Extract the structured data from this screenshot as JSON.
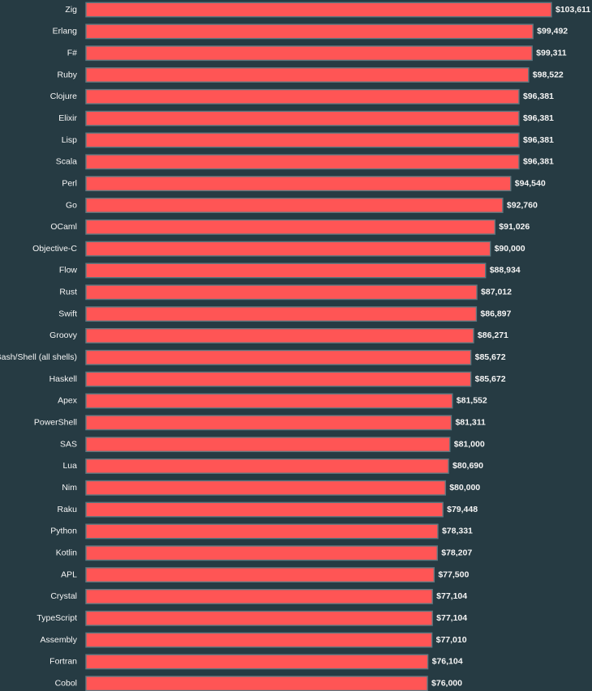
{
  "chart_data": {
    "type": "bar",
    "orientation": "horizontal",
    "title": "",
    "xlabel": "",
    "ylabel": "",
    "xlim": [
      0,
      103611
    ],
    "grid": false,
    "legend": "none",
    "categories": [
      "Zig",
      "Erlang",
      "F#",
      "Ruby",
      "Clojure",
      "Elixir",
      "Lisp",
      "Scala",
      "Perl",
      "Go",
      "OCaml",
      "Objective-C",
      "Flow",
      "Rust",
      "Swift",
      "Groovy",
      "Bash/Shell (all shells)",
      "Haskell",
      "Apex",
      "PowerShell",
      "SAS",
      "Lua",
      "Nim",
      "Raku",
      "Python",
      "Kotlin",
      "APL",
      "Crystal",
      "TypeScript",
      "Assembly",
      "Fortran",
      "Cobol"
    ],
    "values": [
      103611,
      99492,
      99311,
      98522,
      96381,
      96381,
      96381,
      96381,
      94540,
      92760,
      91026,
      90000,
      88934,
      87012,
      86897,
      86271,
      85672,
      85672,
      81552,
      81311,
      81000,
      80690,
      80000,
      79448,
      78331,
      78207,
      77500,
      77104,
      77104,
      77010,
      76104,
      76000
    ],
    "value_labels": [
      "$103,611",
      "$99,492",
      "$99,311",
      "$98,522",
      "$96,381",
      "$96,381",
      "$96,381",
      "$96,381",
      "$94,540",
      "$92,760",
      "$91,026",
      "$90,000",
      "$88,934",
      "$87,012",
      "$86,897",
      "$86,271",
      "$85,672",
      "$85,672",
      "$81,552",
      "$81,311",
      "$81,000",
      "$80,690",
      "$80,000",
      "$79,448",
      "$78,331",
      "$78,207",
      "$77,500",
      "$77,104",
      "$77,104",
      "$77,010",
      "$76,104",
      "$76,000"
    ],
    "colors": {
      "background": "#263b43",
      "bar_fill": "#ff5555",
      "bar_stroke": "#5f7880",
      "text": "#f5f5f5"
    }
  }
}
